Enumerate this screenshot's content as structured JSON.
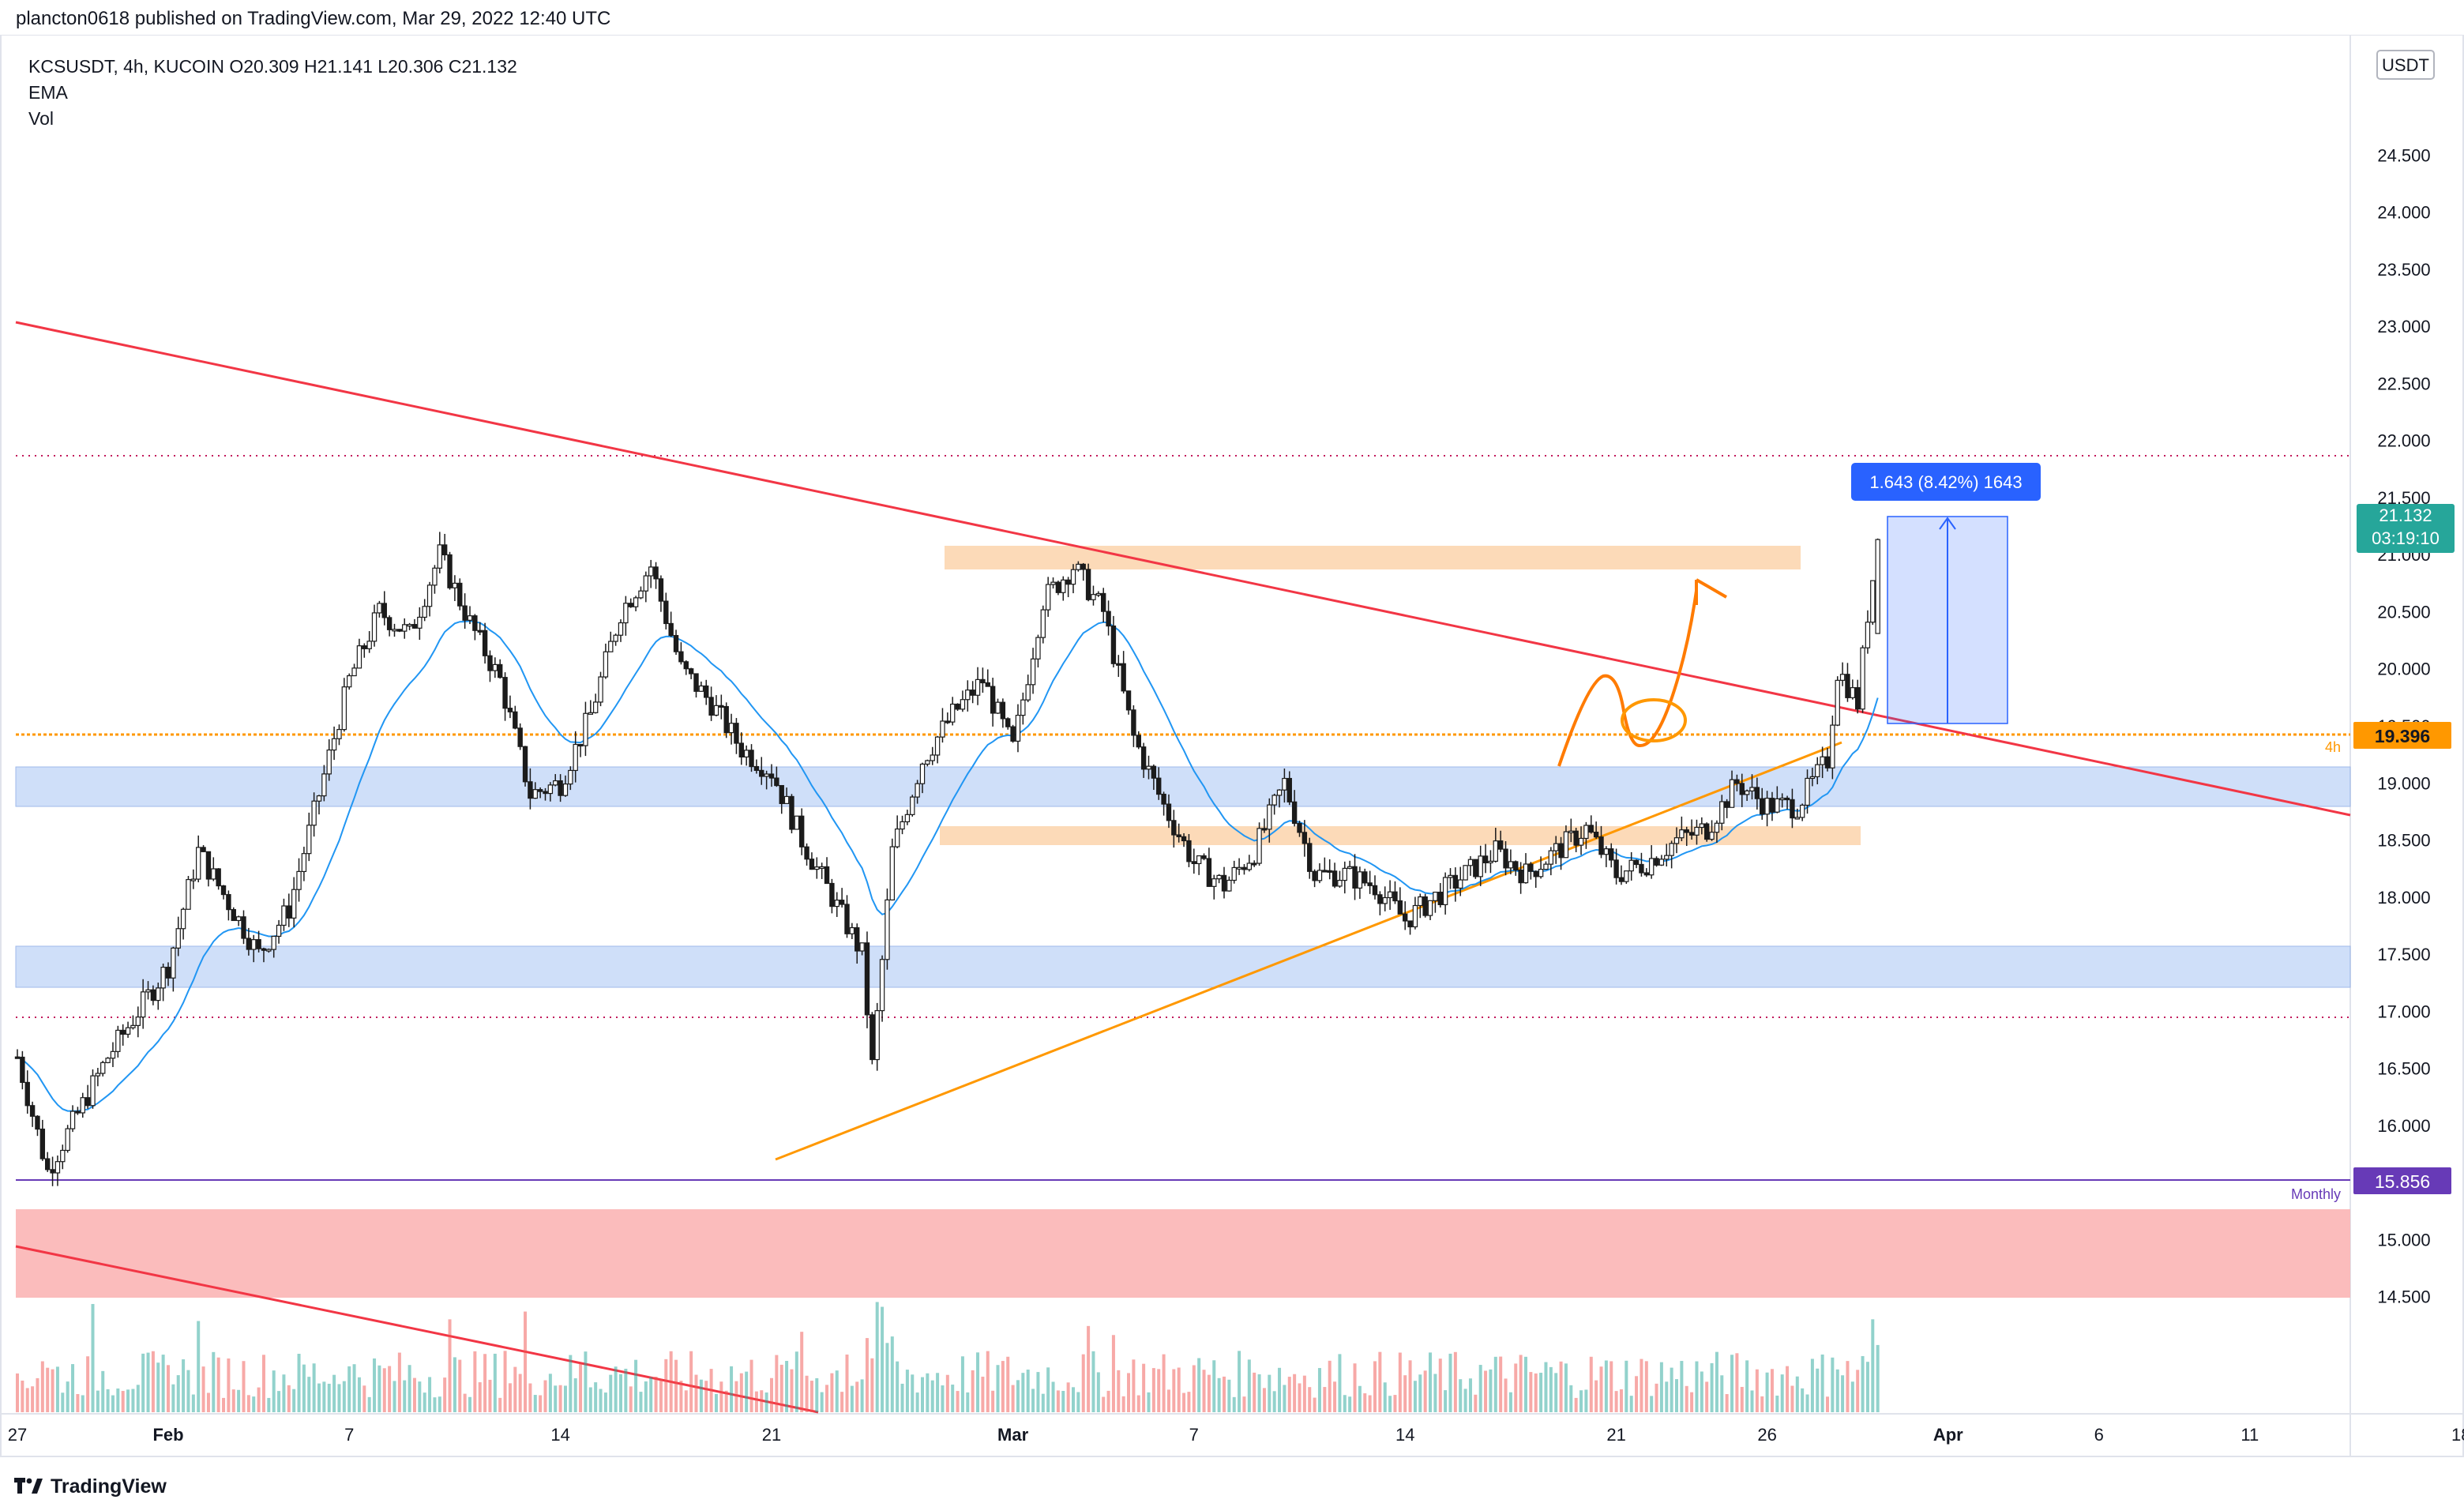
{
  "header": {
    "attribution": "plancton0618 published on TradingView.com, Mar 29, 2022 12:40 UTC"
  },
  "legend": {
    "symbol_line": "KCSUSDT, 4h, KUCOIN  O20.309  H21.141  L20.306  C21.132",
    "indicator_1": "EMA",
    "indicator_2": "Vol"
  },
  "axis": {
    "currency_label": "USDT",
    "price_ticks": [
      "24.500",
      "24.000",
      "23.500",
      "23.000",
      "22.500",
      "22.000",
      "21.500",
      "21.000",
      "20.500",
      "20.000",
      "19.500",
      "19.000",
      "18.500",
      "18.000",
      "17.500",
      "17.000",
      "16.500",
      "16.000",
      "15.500",
      "15.000",
      "14.500"
    ],
    "date_ticks": [
      "27",
      "Feb",
      "7",
      "14",
      "21",
      "Mar",
      "7",
      "14",
      "21",
      "26",
      "Apr",
      "6",
      "11",
      "18"
    ]
  },
  "badges": {
    "last_price": "21.132",
    "countdown": "03:19:10",
    "level_4h": "19.396",
    "level_4h_label": "4h",
    "level_monthly": "15.856",
    "level_monthly_label": "Monthly",
    "measure": "1.643 (8.42%) 1643"
  },
  "footer": {
    "brand": "TradingView"
  },
  "colors": {
    "up": "#26a69a",
    "down": "#ef5350",
    "ema": "#2196f3",
    "resistance_line": "#f23645",
    "support_line": "#ff9800",
    "monthly_line": "#673ab7",
    "blue_zone": "#bbd2f7",
    "orange_zone": "#fbd3ab",
    "red_zone": "#fbb5b5",
    "measure": "#2962ff"
  },
  "chart_data": {
    "type": "candlestick",
    "timeframe": "4h",
    "symbol": "KCSUSDT",
    "ylim": [
      14.0,
      25.0
    ],
    "last": {
      "open": 20.309,
      "high": 21.141,
      "low": 20.306,
      "close": 21.132
    },
    "key_levels": [
      {
        "name": "4h",
        "value": 19.396
      },
      {
        "name": "Monthly",
        "value": 15.856
      }
    ],
    "dotted_levels": [
      21.62,
      17.15
    ],
    "zones": [
      {
        "color": "blue",
        "from": 18.82,
        "to": 19.13
      },
      {
        "color": "blue",
        "from": 17.38,
        "to": 17.71
      },
      {
        "color": "orange",
        "from": 20.72,
        "to": 20.9
      },
      {
        "color": "orange",
        "from": 18.55,
        "to": 18.67
      },
      {
        "color": "red",
        "from": 14.92,
        "to": 15.62
      }
    ],
    "measure": {
      "from": 19.49,
      "to": 21.13,
      "change": 1.643,
      "pct": 8.42
    },
    "swing_path": [
      {
        "x": "Jan 27",
        "y": 16.6
      },
      {
        "x": "Jan 28",
        "y": 15.6
      },
      {
        "x": "Jan 30",
        "y": 16.6
      },
      {
        "x": "Feb 1",
        "y": 17.4
      },
      {
        "x": "Feb 2",
        "y": 18.4
      },
      {
        "x": "Feb 4",
        "y": 17.5
      },
      {
        "x": "Feb 5",
        "y": 17.9
      },
      {
        "x": "Feb 7",
        "y": 19.9
      },
      {
        "x": "Feb 8",
        "y": 20.5
      },
      {
        "x": "Feb 9",
        "y": 20.3
      },
      {
        "x": "Feb 10",
        "y": 21.0
      },
      {
        "x": "Feb 11",
        "y": 20.4
      },
      {
        "x": "Feb 12",
        "y": 19.9
      },
      {
        "x": "Feb 13",
        "y": 18.9
      },
      {
        "x": "Feb 14",
        "y": 19.0
      },
      {
        "x": "Feb 15",
        "y": 19.6
      },
      {
        "x": "Feb 16",
        "y": 20.5
      },
      {
        "x": "Feb 17",
        "y": 20.9
      },
      {
        "x": "Feb 18",
        "y": 20.0
      },
      {
        "x": "Feb 19",
        "y": 19.7
      },
      {
        "x": "Feb 20",
        "y": 19.3
      },
      {
        "x": "Feb 21",
        "y": 19.1
      },
      {
        "x": "Feb 22",
        "y": 18.5
      },
      {
        "x": "Feb 23",
        "y": 18.0
      },
      {
        "x": "Feb 24",
        "y": 17.5
      },
      {
        "x": "Feb 24",
        "y": 16.5
      },
      {
        "x": "Feb 25",
        "y": 18.4
      },
      {
        "x": "Feb 26",
        "y": 19.2
      },
      {
        "x": "Feb 27",
        "y": 19.6
      },
      {
        "x": "Feb 28",
        "y": 19.9
      },
      {
        "x": "Mar 1",
        "y": 19.3
      },
      {
        "x": "Mar 2",
        "y": 20.6
      },
      {
        "x": "Mar 3",
        "y": 20.9
      },
      {
        "x": "Mar 4",
        "y": 20.5
      },
      {
        "x": "Mar 5",
        "y": 19.4
      },
      {
        "x": "Mar 6",
        "y": 18.8
      },
      {
        "x": "Mar 7",
        "y": 18.3
      },
      {
        "x": "Mar 8",
        "y": 18.1
      },
      {
        "x": "Mar 9",
        "y": 18.4
      },
      {
        "x": "Mar 10",
        "y": 19.0
      },
      {
        "x": "Mar 11",
        "y": 18.2
      },
      {
        "x": "Mar 12",
        "y": 18.2
      },
      {
        "x": "Mar 13",
        "y": 18.1
      },
      {
        "x": "Mar 14",
        "y": 17.8
      },
      {
        "x": "Mar 15",
        "y": 18.0
      },
      {
        "x": "Mar 16",
        "y": 18.2
      },
      {
        "x": "Mar 17",
        "y": 18.4
      },
      {
        "x": "Mar 18",
        "y": 18.2
      },
      {
        "x": "Mar 19",
        "y": 18.4
      },
      {
        "x": "Mar 20",
        "y": 18.6
      },
      {
        "x": "Mar 21",
        "y": 18.2
      },
      {
        "x": "Mar 22",
        "y": 18.3
      },
      {
        "x": "Mar 23",
        "y": 18.5
      },
      {
        "x": "Mar 24",
        "y": 18.6
      },
      {
        "x": "Mar 25",
        "y": 19.0
      },
      {
        "x": "Mar 26",
        "y": 18.8
      },
      {
        "x": "Mar 27",
        "y": 18.8
      },
      {
        "x": "Mar 28",
        "y": 19.2
      },
      {
        "x": "Mar 28",
        "y": 20.0
      },
      {
        "x": "Mar 29",
        "y": 19.7
      },
      {
        "x": "Mar 29",
        "y": 20.5
      },
      {
        "x": "Mar 29",
        "y": 21.13
      }
    ]
  }
}
